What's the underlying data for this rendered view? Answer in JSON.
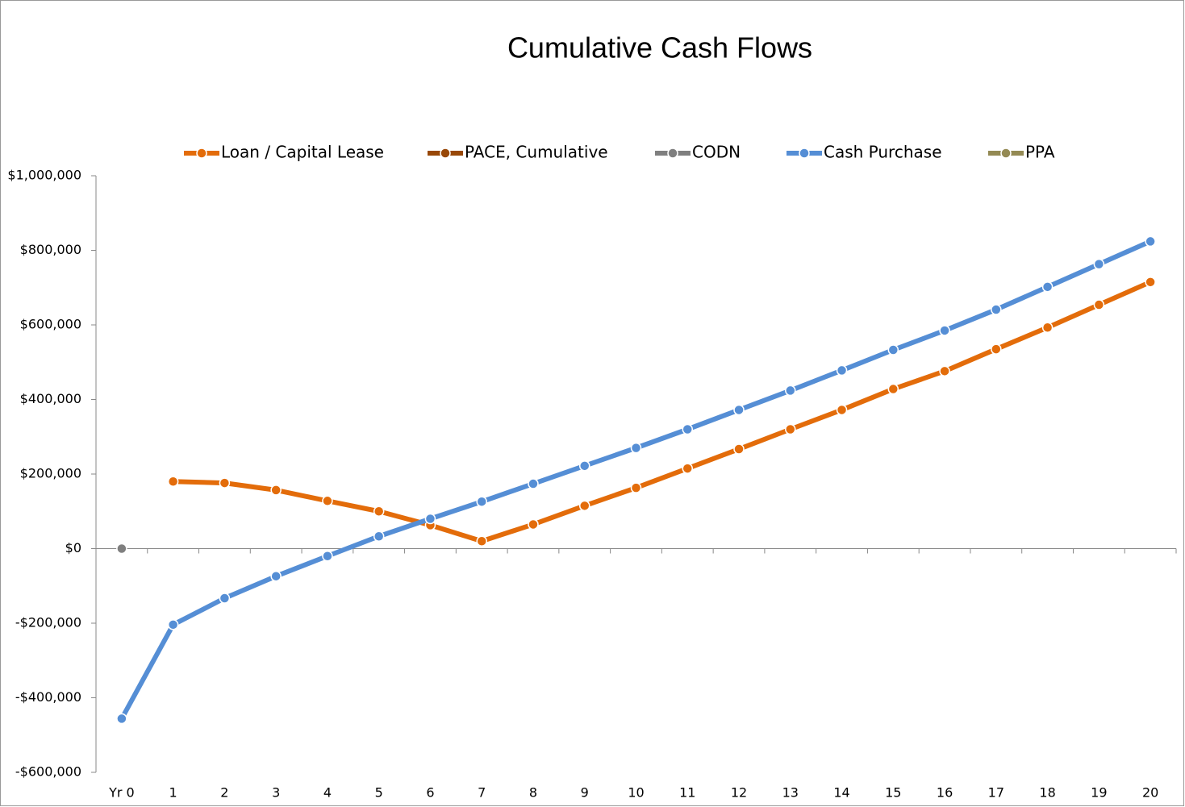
{
  "chart_data": {
    "type": "line",
    "title": "Cumulative Cash Flows",
    "categories": [
      "Yr 0",
      "1",
      "2",
      "3",
      "4",
      "5",
      "6",
      "7",
      "8",
      "9",
      "10",
      "11",
      "12",
      "13",
      "14",
      "15",
      "16",
      "17",
      "18",
      "19",
      "20"
    ],
    "series": [
      {
        "name": "Loan / Capital Lease",
        "color": "#e36c0a",
        "values": [
          null,
          180000,
          176000,
          157000,
          128000,
          100000,
          63000,
          20000,
          65000,
          115000,
          163000,
          215000,
          267000,
          320000,
          372000,
          428000,
          476000,
          535000,
          593000,
          654000,
          715000
        ]
      },
      {
        "name": "PACE, Cumulative",
        "color": "#984807",
        "values": [
          null,
          null,
          null,
          null,
          null,
          null,
          null,
          null,
          null,
          null,
          null,
          null,
          null,
          null,
          null,
          null,
          null,
          null,
          null,
          null,
          null
        ]
      },
      {
        "name": "CODN",
        "color": "#7f7f7f",
        "values": [
          0,
          null,
          null,
          null,
          null,
          null,
          null,
          null,
          null,
          null,
          null,
          null,
          null,
          null,
          null,
          null,
          null,
          null,
          null,
          null,
          null
        ]
      },
      {
        "name": "Cash Purchase",
        "color": "#558ed5",
        "values": [
          -456000,
          -204000,
          -133000,
          -74000,
          -20000,
          33000,
          80000,
          126000,
          174000,
          222000,
          270000,
          320000,
          372000,
          424000,
          478000,
          533000,
          585000,
          641000,
          702000,
          763000,
          824000
        ]
      },
      {
        "name": "PPA",
        "color": "#948a54",
        "values": [
          null,
          null,
          null,
          null,
          null,
          null,
          null,
          null,
          null,
          null,
          null,
          null,
          null,
          null,
          null,
          null,
          null,
          null,
          null,
          null,
          null
        ]
      }
    ],
    "ylim": [
      -600000,
      1000000
    ],
    "yticks": [
      {
        "value": -600000,
        "label": "-$600,000"
      },
      {
        "value": -400000,
        "label": "-$400,000"
      },
      {
        "value": -200000,
        "label": "-$200,000"
      },
      {
        "value": 0,
        "label": "$0"
      },
      {
        "value": 200000,
        "label": "$200,000"
      },
      {
        "value": 400000,
        "label": "$400,000"
      },
      {
        "value": 600000,
        "label": "$600,000"
      },
      {
        "value": 800000,
        "label": "$800,000"
      },
      {
        "value": 1000000,
        "label": "$1,000,000"
      }
    ],
    "legend": "top"
  }
}
